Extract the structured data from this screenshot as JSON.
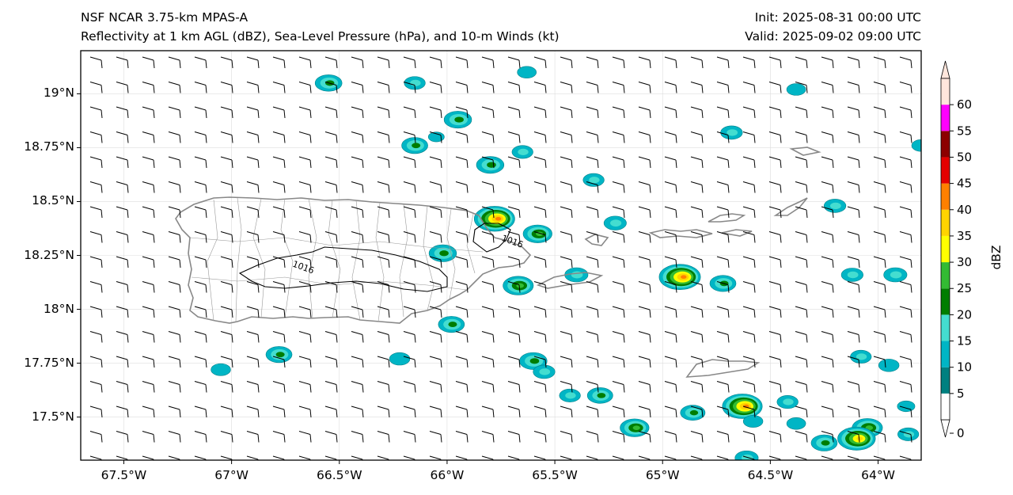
{
  "title": {
    "model": "NSF NCAR 3.75-km MPAS-A",
    "fields": "Reflectivity at 1 km AGL (dBZ), Sea-Level Pressure (hPa), and 10-m Winds (kt)",
    "init": "Init: 2025-08-31 00:00 UTC",
    "valid": "Valid: 2025-09-02 09:00 UTC"
  },
  "map": {
    "lon_range": [
      -67.7,
      -63.8
    ],
    "lat_range": [
      17.3,
      19.2
    ],
    "lat_ticks": [
      {
        "value": 19.0,
        "label": "19°N"
      },
      {
        "value": 18.75,
        "label": "18.75°N"
      },
      {
        "value": 18.5,
        "label": "18.5°N"
      },
      {
        "value": 18.25,
        "label": "18.25°N"
      },
      {
        "value": 18.0,
        "label": "18°N"
      },
      {
        "value": 17.75,
        "label": "17.75°N"
      },
      {
        "value": 17.5,
        "label": "17.5°N"
      }
    ],
    "lon_ticks": [
      {
        "value": -67.5,
        "label": "67.5°W"
      },
      {
        "value": -67.0,
        "label": "67°W"
      },
      {
        "value": -66.5,
        "label": "66.5°W"
      },
      {
        "value": -66.0,
        "label": "66°W"
      },
      {
        "value": -65.5,
        "label": "65.5°W"
      },
      {
        "value": -65.0,
        "label": "65°W"
      },
      {
        "value": -64.5,
        "label": "64.5°W"
      },
      {
        "value": -64.0,
        "label": "64°W"
      }
    ],
    "isobars": [
      {
        "value": 1016,
        "label": "1016",
        "label_lonlat": [
          -66.72,
          18.2
        ]
      },
      {
        "value": 1016,
        "label": "1016",
        "label_lonlat": [
          -65.75,
          18.32
        ]
      }
    ],
    "cells": [
      {
        "lon": -66.55,
        "lat": 19.05,
        "peak": 23
      },
      {
        "lon": -66.15,
        "lat": 19.05,
        "peak": 15
      },
      {
        "lon": -65.63,
        "lat": 19.1,
        "peak": 12
      },
      {
        "lon": -65.95,
        "lat": 18.88,
        "peak": 24
      },
      {
        "lon": -66.05,
        "lat": 18.8,
        "peak": 8
      },
      {
        "lon": -66.15,
        "lat": 18.76,
        "peak": 22
      },
      {
        "lon": -65.8,
        "lat": 18.67,
        "peak": 24
      },
      {
        "lon": -65.65,
        "lat": 18.73,
        "peak": 15
      },
      {
        "lon": -65.32,
        "lat": 18.6,
        "peak": 15
      },
      {
        "lon": -65.22,
        "lat": 18.4,
        "peak": 17
      },
      {
        "lon": -65.78,
        "lat": 18.42,
        "peak": 42
      },
      {
        "lon": -65.58,
        "lat": 18.35,
        "peak": 26
      },
      {
        "lon": -66.02,
        "lat": 18.26,
        "peak": 24
      },
      {
        "lon": -65.67,
        "lat": 18.11,
        "peak": 28
      },
      {
        "lon": -65.4,
        "lat": 18.16,
        "peak": 18
      },
      {
        "lon": -64.92,
        "lat": 18.15,
        "peak": 43
      },
      {
        "lon": -64.72,
        "lat": 18.12,
        "peak": 22
      },
      {
        "lon": -64.68,
        "lat": 18.82,
        "peak": 16
      },
      {
        "lon": -64.38,
        "lat": 19.02,
        "peak": 12
      },
      {
        "lon": -64.2,
        "lat": 18.48,
        "peak": 16
      },
      {
        "lon": -64.12,
        "lat": 18.16,
        "peak": 16
      },
      {
        "lon": -63.92,
        "lat": 18.16,
        "peak": 18
      },
      {
        "lon": -63.8,
        "lat": 18.76,
        "peak": 12
      },
      {
        "lon": -65.98,
        "lat": 17.93,
        "peak": 22
      },
      {
        "lon": -67.05,
        "lat": 17.72,
        "peak": 13
      },
      {
        "lon": -66.78,
        "lat": 17.79,
        "peak": 22
      },
      {
        "lon": -66.22,
        "lat": 17.77,
        "peak": 14
      },
      {
        "lon": -65.6,
        "lat": 17.76,
        "peak": 24
      },
      {
        "lon": -65.55,
        "lat": 17.71,
        "peak": 16
      },
      {
        "lon": -65.43,
        "lat": 17.6,
        "peak": 15
      },
      {
        "lon": -65.29,
        "lat": 17.6,
        "peak": 21
      },
      {
        "lon": -65.13,
        "lat": 17.45,
        "peak": 26
      },
      {
        "lon": -64.86,
        "lat": 17.52,
        "peak": 20
      },
      {
        "lon": -64.63,
        "lat": 17.55,
        "peak": 41
      },
      {
        "lon": -64.58,
        "lat": 17.48,
        "peak": 13
      },
      {
        "lon": -64.42,
        "lat": 17.57,
        "peak": 15
      },
      {
        "lon": -64.38,
        "lat": 17.47,
        "peak": 12
      },
      {
        "lon": -64.08,
        "lat": 17.78,
        "peak": 15
      },
      {
        "lon": -63.95,
        "lat": 17.74,
        "peak": 14
      },
      {
        "lon": -64.25,
        "lat": 17.38,
        "peak": 22
      },
      {
        "lon": -64.05,
        "lat": 17.45,
        "peak": 28
      },
      {
        "lon": -64.1,
        "lat": 17.4,
        "peak": 38
      },
      {
        "lon": -63.86,
        "lat": 17.42,
        "peak": 15
      },
      {
        "lon": -64.61,
        "lat": 17.31,
        "peak": 18
      },
      {
        "lon": -63.87,
        "lat": 17.55,
        "peak": 10
      }
    ]
  },
  "colorbar": {
    "label": "dBZ",
    "levels": [
      0,
      5,
      10,
      15,
      20,
      25,
      30,
      35,
      40,
      45,
      50,
      55,
      60
    ],
    "colors": [
      "#ffffff",
      "#008080",
      "#00b5c5",
      "#44ddd0",
      "#007d00",
      "#33bb33",
      "#ffff00",
      "#ffd400",
      "#ff8000",
      "#e40000",
      "#8c0000",
      "#ff00ff",
      "#ffe6dc"
    ]
  }
}
